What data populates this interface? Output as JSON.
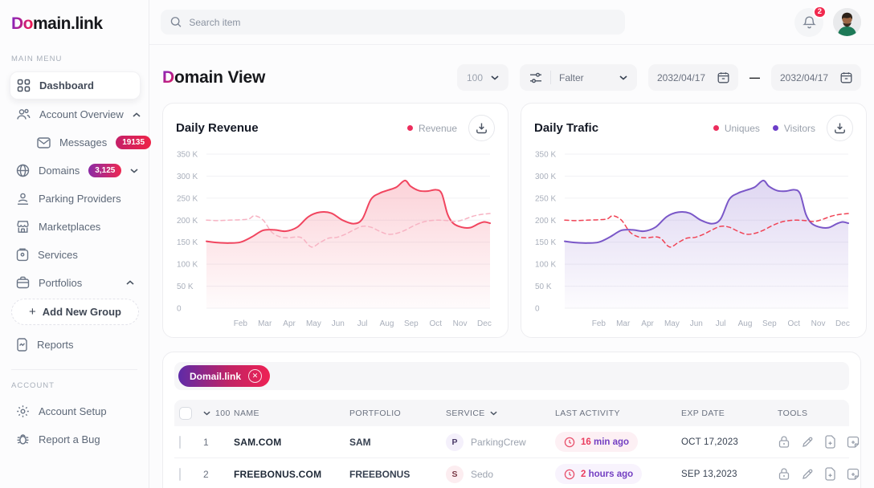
{
  "brand": {
    "logo_grad": "Do",
    "logo_rest": "main.link"
  },
  "sidebar": {
    "sections": {
      "main": "MAIN MENU",
      "account": "ACCOUNT"
    },
    "items": {
      "dashboard": {
        "label": "Dashboard"
      },
      "account_overview": {
        "label": "Account Overview"
      },
      "messages": {
        "label": "Messages",
        "badge": "19135"
      },
      "domains": {
        "label": "Domains",
        "badge": "3,125"
      },
      "parking_providers": {
        "label": "Parking Providers"
      },
      "marketplaces": {
        "label": "Marketplaces"
      },
      "services": {
        "label": "Services"
      },
      "portfolios": {
        "label": "Portfolios"
      },
      "add_new_group": {
        "plus": "+",
        "label": "Add New Group"
      },
      "reports": {
        "label": "Reports"
      },
      "account_setup": {
        "label": "Account Setup"
      },
      "report_a_bug": {
        "label": "Report a Bug"
      }
    }
  },
  "topbar": {
    "search_placeholder": "Search item",
    "notification_count": "2"
  },
  "page": {
    "title_grad": "D",
    "title_rest": "omain View"
  },
  "filters": {
    "page_size": "100",
    "filter_label": "Falter",
    "date_from": "2032/04/17",
    "date_to": "2032/04/17",
    "dash": "—"
  },
  "chart_data": [
    {
      "type": "line",
      "title": "Daily Revenue",
      "legend": [
        {
          "label": "Revenue",
          "color": "#EC2D5C"
        }
      ],
      "x_labels": [
        "Feb",
        "Mar",
        "Apr",
        "May",
        "Jun",
        "Jul",
        "Aug",
        "Sep",
        "Oct",
        "Nov",
        "Dec"
      ],
      "ylim_k": [
        0,
        350
      ],
      "yticks_k": [
        350,
        300,
        250,
        200,
        150,
        100,
        50,
        0
      ],
      "ytick_labels": [
        "350 K",
        "300 K",
        "250 K",
        "200 K",
        "150 K",
        "100 K",
        "50 K",
        "0"
      ],
      "grid": true,
      "legend_position": "top-right",
      "series": [
        {
          "name": "Revenue",
          "style": "solid",
          "color": "#F1455F",
          "fill": true,
          "points_pct_k": [
            [
              0,
              152
            ],
            [
              4,
              149
            ],
            [
              8,
              148
            ],
            [
              12,
              150
            ],
            [
              16,
              162
            ],
            [
              20,
              177
            ],
            [
              24,
              178
            ],
            [
              28,
              175
            ],
            [
              32,
              184
            ],
            [
              36,
              208
            ],
            [
              40,
              218
            ],
            [
              44,
              216
            ],
            [
              48,
              200
            ],
            [
              52,
              192
            ],
            [
              55,
              203
            ],
            [
              58,
              247
            ],
            [
              61,
              261
            ],
            [
              64,
              268
            ],
            [
              67,
              275
            ],
            [
              70,
              290
            ],
            [
              72,
              277
            ],
            [
              75,
              267
            ],
            [
              78,
              266
            ],
            [
              81,
              269
            ],
            [
              83,
              260
            ],
            [
              85,
              214
            ],
            [
              87,
              193
            ],
            [
              90,
              184
            ],
            [
              93,
              183
            ],
            [
              96,
              192
            ],
            [
              98,
              196
            ],
            [
              100,
              193
            ]
          ]
        },
        {
          "name": "",
          "style": "dashed",
          "color": "#F7B3C3",
          "fill": false,
          "points_pct_k": [
            [
              0,
              200
            ],
            [
              4,
              199
            ],
            [
              8,
              200
            ],
            [
              12,
              201
            ],
            [
              15,
              203
            ],
            [
              17,
              210
            ],
            [
              20,
              200
            ],
            [
              23,
              173
            ],
            [
              26,
              162
            ],
            [
              29,
              160
            ],
            [
              32,
              162
            ],
            [
              34,
              158
            ],
            [
              37,
              139
            ],
            [
              40,
              149
            ],
            [
              43,
              159
            ],
            [
              46,
              161
            ],
            [
              49,
              168
            ],
            [
              52,
              178
            ],
            [
              55,
              186
            ],
            [
              58,
              184
            ],
            [
              61,
              175
            ],
            [
              64,
              168
            ],
            [
              67,
              170
            ],
            [
              70,
              177
            ],
            [
              73,
              187
            ],
            [
              76,
              195
            ],
            [
              79,
              199
            ],
            [
              82,
              200
            ],
            [
              85,
              199
            ],
            [
              88,
              197
            ],
            [
              91,
              202
            ],
            [
              94,
              209
            ],
            [
              97,
              213
            ],
            [
              100,
              215
            ]
          ]
        }
      ]
    },
    {
      "type": "line",
      "title": "Daily Trafic",
      "legend": [
        {
          "label": "Uniques",
          "color": "#EC2D5C"
        },
        {
          "label": "Visitors",
          "color": "#6C3EC8"
        }
      ],
      "x_labels": [
        "Feb",
        "Mar",
        "Apr",
        "May",
        "Jun",
        "Jul",
        "Aug",
        "Sep",
        "Oct",
        "Nov",
        "Dec"
      ],
      "ylim_k": [
        0,
        350
      ],
      "yticks_k": [
        350,
        300,
        250,
        200,
        150,
        100,
        50,
        0
      ],
      "ytick_labels": [
        "350 K",
        "300 K",
        "250 K",
        "200 K",
        "150 K",
        "100 K",
        "50 K",
        "0"
      ],
      "grid": true,
      "legend_position": "top-right",
      "series": [
        {
          "name": "Visitors",
          "style": "solid",
          "color": "#7A57C8",
          "fill": true,
          "points_pct_k": [
            [
              0,
              152
            ],
            [
              4,
              149
            ],
            [
              8,
              148
            ],
            [
              12,
              150
            ],
            [
              16,
              162
            ],
            [
              20,
              177
            ],
            [
              24,
              178
            ],
            [
              28,
              175
            ],
            [
              32,
              184
            ],
            [
              36,
              208
            ],
            [
              40,
              218
            ],
            [
              44,
              216
            ],
            [
              48,
              200
            ],
            [
              52,
              192
            ],
            [
              55,
              203
            ],
            [
              58,
              247
            ],
            [
              61,
              261
            ],
            [
              64,
              268
            ],
            [
              67,
              275
            ],
            [
              70,
              290
            ],
            [
              72,
              277
            ],
            [
              75,
              267
            ],
            [
              78,
              266
            ],
            [
              81,
              269
            ],
            [
              83,
              260
            ],
            [
              85,
              214
            ],
            [
              87,
              193
            ],
            [
              90,
              184
            ],
            [
              93,
              183
            ],
            [
              96,
              192
            ],
            [
              98,
              196
            ],
            [
              100,
              193
            ]
          ]
        },
        {
          "name": "Uniques",
          "style": "dashed",
          "color": "#F04355",
          "fill": false,
          "points_pct_k": [
            [
              0,
              200
            ],
            [
              4,
              199
            ],
            [
              8,
              200
            ],
            [
              12,
              201
            ],
            [
              15,
              203
            ],
            [
              17,
              210
            ],
            [
              20,
              200
            ],
            [
              23,
              173
            ],
            [
              26,
              162
            ],
            [
              29,
              160
            ],
            [
              32,
              162
            ],
            [
              34,
              158
            ],
            [
              37,
              139
            ],
            [
              40,
              149
            ],
            [
              43,
              159
            ],
            [
              46,
              161
            ],
            [
              49,
              168
            ],
            [
              52,
              178
            ],
            [
              55,
              186
            ],
            [
              58,
              184
            ],
            [
              61,
              175
            ],
            [
              64,
              168
            ],
            [
              67,
              170
            ],
            [
              70,
              177
            ],
            [
              73,
              187
            ],
            [
              76,
              195
            ],
            [
              79,
              199
            ],
            [
              82,
              200
            ],
            [
              85,
              199
            ],
            [
              88,
              197
            ],
            [
              91,
              202
            ],
            [
              94,
              209
            ],
            [
              97,
              213
            ],
            [
              100,
              215
            ]
          ]
        }
      ]
    }
  ],
  "table": {
    "chip_label": "Domail.link",
    "page_size": "100",
    "columns": {
      "name": "NAME",
      "portfolio": "PORTFOLIO",
      "service": "SERVICE",
      "last_activity": "LAST ACTIVITY",
      "exp_date": "EXP DATE",
      "tools": "TOOLS"
    },
    "rows": [
      {
        "num": "1",
        "name": "SAM.COM",
        "portfolio": "SAM",
        "service_initial": "P",
        "service": "ParkingCrew",
        "activity_value": "16",
        "activity_unit": "min ago",
        "exp_date": "OCT 17,2023"
      },
      {
        "num": "2",
        "name": "FREEBONUS.COM",
        "portfolio": "FREEBONUS",
        "service_initial": "S",
        "service": "Sedo",
        "activity_value": "2",
        "activity_unit": "hours ago",
        "exp_date": "SEP 13,2023"
      }
    ]
  }
}
